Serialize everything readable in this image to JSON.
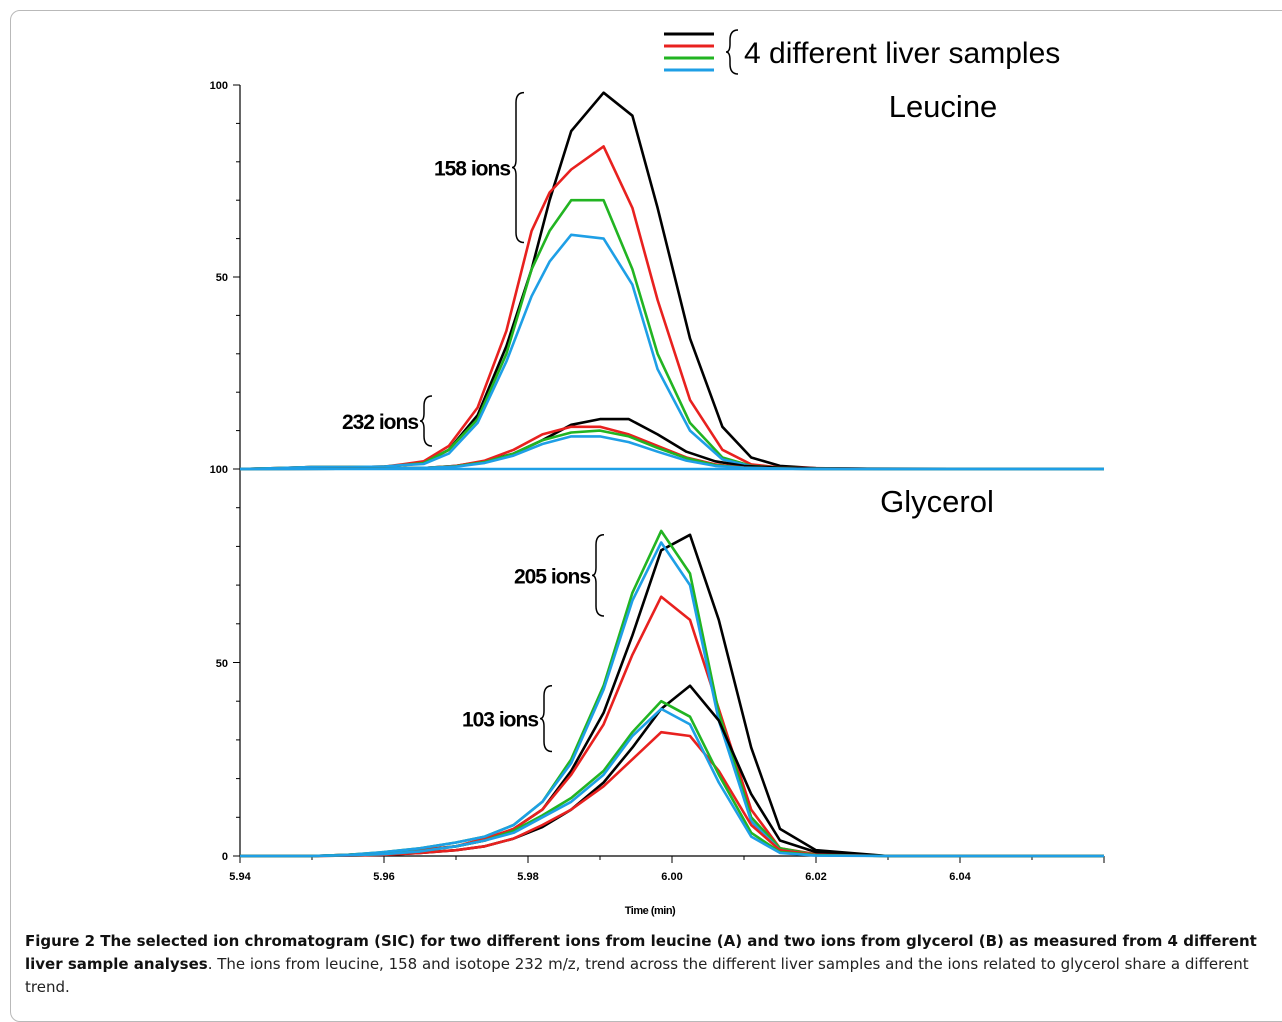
{
  "chart_data": {
    "type": "line",
    "legend": {
      "label": "4 different liver samples",
      "position": "top-right"
    },
    "series_colors": [
      "#000000",
      "#e8211f",
      "#22b422",
      "#1e9fe6"
    ],
    "x_axis": {
      "label": "Time (min)",
      "range": [
        5.94,
        6.06
      ],
      "ticks": [
        "5.94",
        "5.96",
        "5.98",
        "6.00",
        "6.02",
        "6.04"
      ]
    },
    "panels": [
      {
        "title": "Leucine",
        "y_range": [
          0,
          100
        ],
        "y_ticks": [
          "100",
          "50",
          "100"
        ],
        "ion_groups": [
          {
            "label": "158 ions",
            "bracket_range": [
              59,
              98
            ],
            "x": [
              5.94,
              5.945,
              5.95,
              5.955,
              5.96,
              5.9625,
              5.9655,
              5.969,
              5.973,
              5.977,
              5.9805,
              5.983,
              5.986,
              5.9905,
              5.9945,
              5.998,
              6.0025,
              6.007,
              6.011,
              6.015,
              6.02,
              6.03,
              6.06
            ],
            "series": [
              {
                "values": [
                  0,
                  0.2,
                  0.5,
                  0.5,
                  0.6,
                  1,
                  1.5,
                  5,
                  14,
                  32,
                  52,
                  70,
                  88,
                  98,
                  92,
                  68,
                  34,
                  11,
                  3,
                  0.8,
                  0.2,
                  0,
                  0
                ]
              },
              {
                "values": [
                  0,
                  0.2,
                  0.5,
                  0.5,
                  0.6,
                  1.2,
                  2,
                  6,
                  16,
                  36,
                  62,
                  72,
                  78,
                  84,
                  68,
                  44,
                  18,
                  5,
                  1.2,
                  0.4,
                  0.2,
                  0,
                  0
                ]
              },
              {
                "values": [
                  0,
                  0.2,
                  0.5,
                  0.5,
                  0.6,
                  1,
                  1.5,
                  5,
                  13,
                  30,
                  52,
                  62,
                  70,
                  70,
                  52,
                  30,
                  12,
                  3,
                  0.8,
                  0.3,
                  0.1,
                  0,
                  0
                ]
              },
              {
                "values": [
                  0,
                  0.2,
                  0.5,
                  0.5,
                  0.6,
                  1,
                  1.3,
                  4,
                  12,
                  28,
                  45,
                  54,
                  61,
                  60,
                  48,
                  26,
                  10,
                  2.5,
                  0.7,
                  0.2,
                  0.1,
                  0,
                  0
                ]
              }
            ]
          },
          {
            "label": "232 ions",
            "bracket_range": [
              6,
              19
            ],
            "x": [
              5.94,
              5.96,
              5.966,
              5.97,
              5.974,
              5.978,
              5.982,
              5.986,
              5.99,
              5.994,
              5.998,
              6.002,
              6.006,
              6.01,
              6.015,
              6.02,
              6.06
            ],
            "series": [
              {
                "values": [
                  0,
                  0.1,
                  0.3,
                  0.8,
                  2,
                  4,
                  7.5,
                  11.5,
                  13,
                  13,
                  9,
                  4.5,
                  2,
                  0.8,
                  0.3,
                  0.1,
                  0
                ]
              },
              {
                "values": [
                  0,
                  0.1,
                  0.3,
                  0.8,
                  2.2,
                  5,
                  9,
                  11,
                  11,
                  9,
                  6,
                  3,
                  1.2,
                  0.4,
                  0.1,
                  0,
                  0
                ]
              },
              {
                "values": [
                  0,
                  0.1,
                  0.3,
                  0.7,
                  1.8,
                  4,
                  7.5,
                  9.5,
                  10,
                  8.5,
                  5.5,
                  2.8,
                  1,
                  0.3,
                  0.1,
                  0,
                  0
                ]
              },
              {
                "values": [
                  0,
                  0.1,
                  0.3,
                  0.6,
                  1.6,
                  3.5,
                  6.5,
                  8.5,
                  8.5,
                  7,
                  4.5,
                  2.2,
                  0.8,
                  0.3,
                  0.1,
                  0,
                  0
                ]
              }
            ]
          }
        ]
      },
      {
        "title": "Glycerol",
        "y_range": [
          0,
          100
        ],
        "y_ticks": [
          "0",
          "50"
        ],
        "ion_groups": [
          {
            "label": "205 ions",
            "bracket_range": [
              62,
              83
            ],
            "x": [
              5.94,
              5.95,
              5.955,
              5.96,
              5.965,
              5.97,
              5.974,
              5.978,
              5.982,
              5.986,
              5.9905,
              5.9945,
              5.9985,
              6.0025,
              6.0065,
              6.011,
              6.015,
              6.02,
              6.03,
              6.06
            ],
            "series": [
              {
                "values": [
                  0,
                  0,
                  0.3,
                  0.8,
                  1.5,
                  2.5,
                  4,
                  7,
                  12,
                  22,
                  37,
                  57,
                  79,
                  83,
                  61,
                  28,
                  7,
                  1.5,
                  0,
                  0
                ]
              },
              {
                "values": [
                  0,
                  0,
                  0.3,
                  0.8,
                  1.5,
                  2.5,
                  4.5,
                  7,
                  12,
                  21,
                  34,
                  52,
                  67,
                  61,
                  38,
                  12,
                  2,
                  0.5,
                  0,
                  0
                ]
              },
              {
                "values": [
                  0,
                  0,
                  0.3,
                  1,
                  2,
                  3.5,
                  5,
                  8,
                  14,
                  25,
                  44,
                  68,
                  84,
                  73,
                  37,
                  10,
                  2,
                  0.3,
                  0,
                  0
                ]
              },
              {
                "values": [
                  0,
                  0,
                  0.3,
                  1,
                  2,
                  3.5,
                  5,
                  8,
                  14,
                  24,
                  43,
                  66,
                  81,
                  70,
                  35,
                  9,
                  1.5,
                  0.3,
                  0,
                  0
                ]
              }
            ]
          },
          {
            "label": "103 ions",
            "bracket_range": [
              27,
              44
            ],
            "x": [
              5.94,
              5.95,
              5.955,
              5.96,
              5.965,
              5.97,
              5.974,
              5.978,
              5.982,
              5.986,
              5.9905,
              5.9945,
              5.9985,
              6.0025,
              6.0065,
              6.011,
              6.015,
              6.02,
              6.03,
              6.06
            ],
            "series": [
              {
                "values": [
                  0,
                  0,
                  0.1,
                  0.3,
                  0.8,
                  1.5,
                  2.5,
                  4.5,
                  7.5,
                  12,
                  19,
                  28,
                  38,
                  44,
                  35,
                  16,
                  4,
                  1,
                  0,
                  0
                ]
              },
              {
                "values": [
                  0,
                  0,
                  0.1,
                  0.3,
                  0.8,
                  1.5,
                  2.5,
                  4.5,
                  8,
                  12,
                  18,
                  25,
                  32,
                  31,
                  22,
                  8,
                  1.5,
                  0.3,
                  0,
                  0
                ]
              },
              {
                "values": [
                  0,
                  0,
                  0.2,
                  0.5,
                  1.2,
                  2.5,
                  4,
                  6.5,
                  10.5,
                  15,
                  22,
                  32,
                  40,
                  36,
                  21,
                  6,
                  1,
                  0.2,
                  0,
                  0
                ]
              },
              {
                "values": [
                  0,
                  0,
                  0.2,
                  0.5,
                  1.2,
                  2.5,
                  4,
                  6,
                  10,
                  14,
                  21,
                  31,
                  38,
                  34,
                  19,
                  5,
                  0.8,
                  0.1,
                  0,
                  0
                ]
              }
            ]
          }
        ]
      }
    ]
  },
  "caption": {
    "bold": "Figure 2 The selected ion chromatogram (SIC) for two different ions from leucine (A) and two ions from glycerol (B) as measured from 4 different liver sample analyses",
    "text": ". The ions from leucine, 158 and isotope 232 m/z, trend across the different liver samples and the ions related to glycerol share a different trend."
  }
}
